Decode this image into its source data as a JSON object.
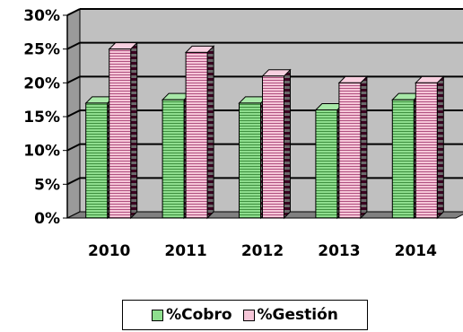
{
  "chart_data": {
    "type": "bar",
    "style": "3d-clustered-column",
    "categories": [
      "2010",
      "2011",
      "2012",
      "2013",
      "2014"
    ],
    "series": [
      {
        "name": "%Cobro",
        "values": [
          17,
          17.5,
          17,
          16,
          17.5
        ],
        "color": "#7fd17f",
        "pattern": "horizontal-stripes"
      },
      {
        "name": "%Gestión",
        "values": [
          25,
          24.5,
          21,
          20,
          20
        ],
        "color": "#f0b0c8",
        "pattern": "horizontal-stripes"
      }
    ],
    "y_ticks": [
      "0%",
      "5%",
      "10%",
      "15%",
      "20%",
      "25%",
      "30%"
    ],
    "ylim": [
      0,
      30
    ],
    "grid": true,
    "wall_color": "#c0c0c0",
    "legend_position": "bottom"
  }
}
